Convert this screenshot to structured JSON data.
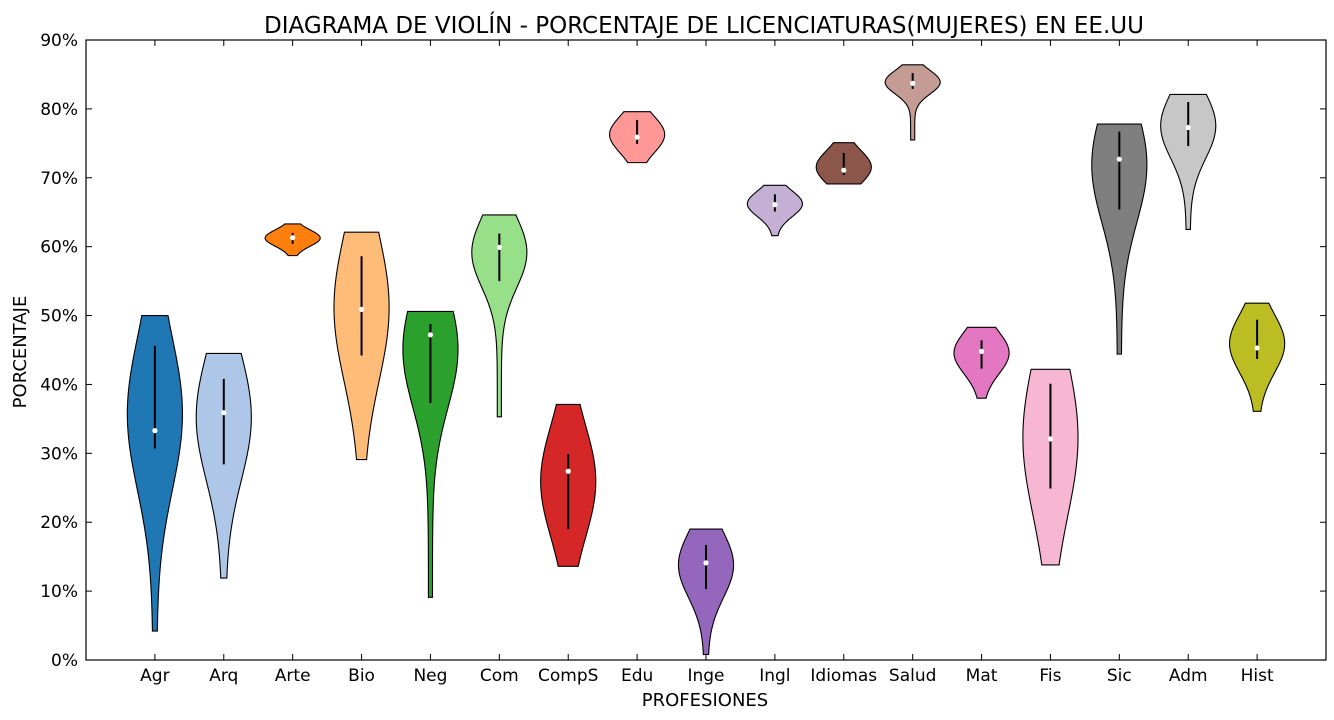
{
  "chart_data": {
    "type": "violin",
    "title": "DIAGRAMA DE VIOLÍN - PORCENTAJE DE LICENCIATURAS(MUJERES) EN EE.UU",
    "xlabel": "PROFESIONES",
    "ylabel": "PORCENTAJE",
    "ylim": [
      0,
      90
    ],
    "yticks": [
      0,
      10,
      20,
      30,
      40,
      50,
      60,
      70,
      80,
      90
    ],
    "ytick_labels": [
      "0%",
      "10%",
      "20%",
      "30%",
      "40%",
      "50%",
      "60%",
      "70%",
      "80%",
      "90%"
    ],
    "grid": false,
    "categories": [
      "Agr",
      "Arq",
      "Arte",
      "Bio",
      "Neg",
      "Com",
      "CompS",
      "Edu",
      "Inge",
      "Ingl",
      "Idiomas",
      "Salud",
      "Mat",
      "Fis",
      "Sic",
      "Adm",
      "Hist"
    ],
    "series": [
      {
        "category": "Agr",
        "color": "#1f77b4",
        "min": 4.2,
        "max": 50.0,
        "median": 33.3,
        "q1": 30.7,
        "q3": 45.6
      },
      {
        "category": "Arq",
        "color": "#aec7e8",
        "min": 11.9,
        "max": 44.5,
        "median": 35.9,
        "q1": 28.4,
        "q3": 40.8
      },
      {
        "category": "Arte",
        "color": "#ff7f0e",
        "min": 58.7,
        "max": 63.3,
        "median": 61.3,
        "q1": 60.4,
        "q3": 62.0
      },
      {
        "category": "Bio",
        "color": "#ffbb78",
        "min": 29.1,
        "max": 62.1,
        "median": 50.9,
        "q1": 44.2,
        "q3": 58.6
      },
      {
        "category": "Neg",
        "color": "#2ca02c",
        "min": 9.1,
        "max": 50.6,
        "median": 47.2,
        "q1": 37.3,
        "q3": 48.8
      },
      {
        "category": "Com",
        "color": "#98df8a",
        "min": 35.3,
        "max": 64.6,
        "median": 59.9,
        "q1": 55.0,
        "q3": 61.9
      },
      {
        "category": "CompS",
        "color": "#d62728",
        "min": 13.6,
        "max": 37.1,
        "median": 27.4,
        "q1": 19.0,
        "q3": 29.9
      },
      {
        "category": "Edu",
        "color": "#ff9896",
        "min": 72.2,
        "max": 79.6,
        "median": 75.9,
        "q1": 74.9,
        "q3": 78.4
      },
      {
        "category": "Inge",
        "color": "#9467bd",
        "min": 0.8,
        "max": 19.0,
        "median": 14.1,
        "q1": 10.3,
        "q3": 16.7
      },
      {
        "category": "Ingl",
        "color": "#c5b0d5",
        "min": 61.6,
        "max": 68.9,
        "median": 66.1,
        "q1": 65.1,
        "q3": 67.6
      },
      {
        "category": "Idiomas",
        "color": "#8c564b",
        "min": 69.1,
        "max": 75.1,
        "median": 71.1,
        "q1": 70.4,
        "q3": 73.6
      },
      {
        "category": "Salud",
        "color": "#c49c94",
        "min": 75.5,
        "max": 86.4,
        "median": 83.7,
        "q1": 82.9,
        "q3": 85.2
      },
      {
        "category": "Mat",
        "color": "#e377c2",
        "min": 38.0,
        "max": 48.3,
        "median": 44.8,
        "q1": 42.3,
        "q3": 46.4
      },
      {
        "category": "Fis",
        "color": "#f7b6d2",
        "min": 13.8,
        "max": 42.2,
        "median": 32.1,
        "q1": 24.9,
        "q3": 40.1
      },
      {
        "category": "Sic",
        "color": "#7f7f7f",
        "min": 44.4,
        "max": 77.8,
        "median": 72.7,
        "q1": 65.4,
        "q3": 76.7
      },
      {
        "category": "Adm",
        "color": "#c7c7c7",
        "min": 62.5,
        "max": 82.1,
        "median": 77.3,
        "q1": 74.6,
        "q3": 81.0
      },
      {
        "category": "Hist",
        "color": "#bcbd22",
        "min": 36.1,
        "max": 51.8,
        "median": 45.3,
        "q1": 43.7,
        "q3": 49.4
      }
    ]
  }
}
